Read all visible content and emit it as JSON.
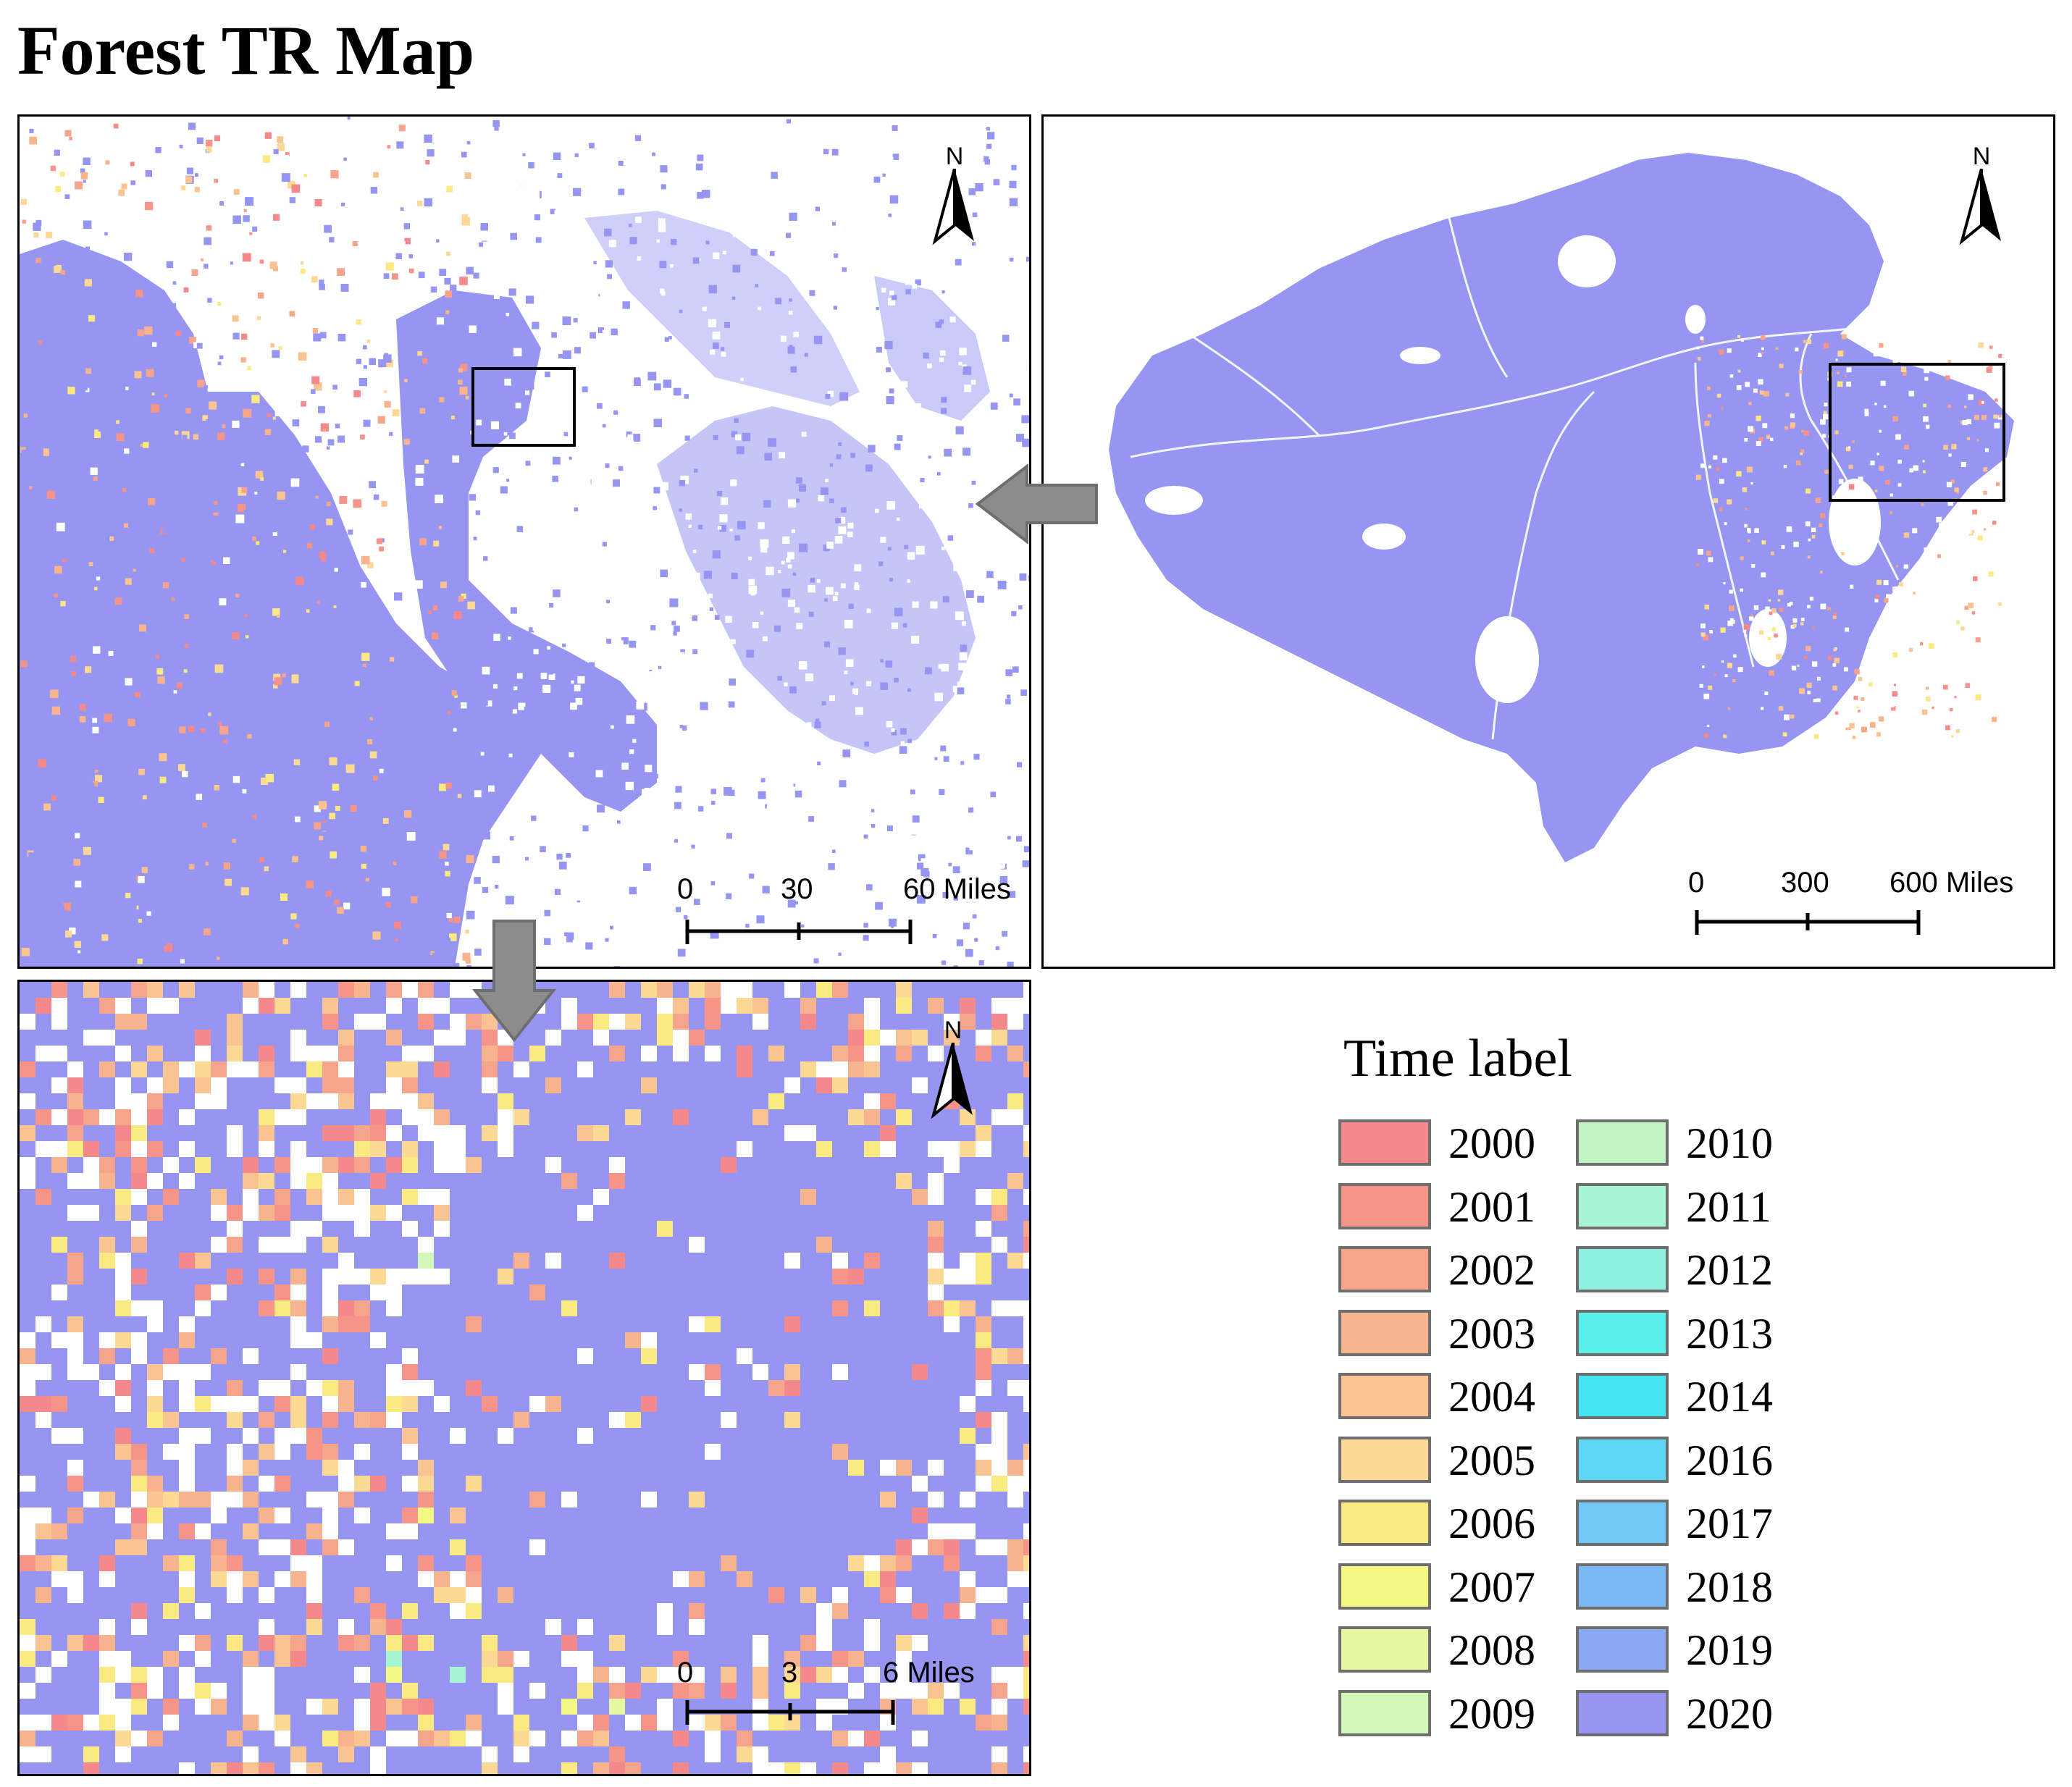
{
  "figure": {
    "title": "Forest TR Map"
  },
  "panels": {
    "zoom_medium": {
      "north_label": "N",
      "scale": {
        "ticks": [
          "0",
          "30",
          "60 Miles"
        ]
      }
    },
    "overview": {
      "north_label": "N",
      "scale": {
        "ticks": [
          "0",
          "300",
          "600 Miles"
        ]
      }
    },
    "zoom_detail": {
      "north_label": "N",
      "scale": {
        "ticks": [
          "0",
          "3",
          "6 Miles"
        ]
      }
    }
  },
  "legend": {
    "title": "Time label",
    "items": [
      {
        "label": "2000",
        "color": "#f4898b"
      },
      {
        "label": "2001",
        "color": "#f6948a"
      },
      {
        "label": "2002",
        "color": "#f7a48c"
      },
      {
        "label": "2003",
        "color": "#f8b48e"
      },
      {
        "label": "2004",
        "color": "#f9c491"
      },
      {
        "label": "2005",
        "color": "#fcd994"
      },
      {
        "label": "2006",
        "color": "#fbe982"
      },
      {
        "label": "2007",
        "color": "#f4f986"
      },
      {
        "label": "2008",
        "color": "#e6f8a2"
      },
      {
        "label": "2009",
        "color": "#d3f8b9"
      },
      {
        "label": "2010",
        "color": "#c3f5c2"
      },
      {
        "label": "2011",
        "color": "#a7f5d2"
      },
      {
        "label": "2012",
        "color": "#8ef1e0"
      },
      {
        "label": "2013",
        "color": "#5aefe9"
      },
      {
        "label": "2014",
        "color": "#45e6f1"
      },
      {
        "label": "2016",
        "color": "#5ed8f6"
      },
      {
        "label": "2017",
        "color": "#72c8f7"
      },
      {
        "label": "2018",
        "color": "#7cb8f6"
      },
      {
        "label": "2019",
        "color": "#8aa8f4"
      },
      {
        "label": "2020",
        "color": "#9695f1"
      }
    ]
  }
}
